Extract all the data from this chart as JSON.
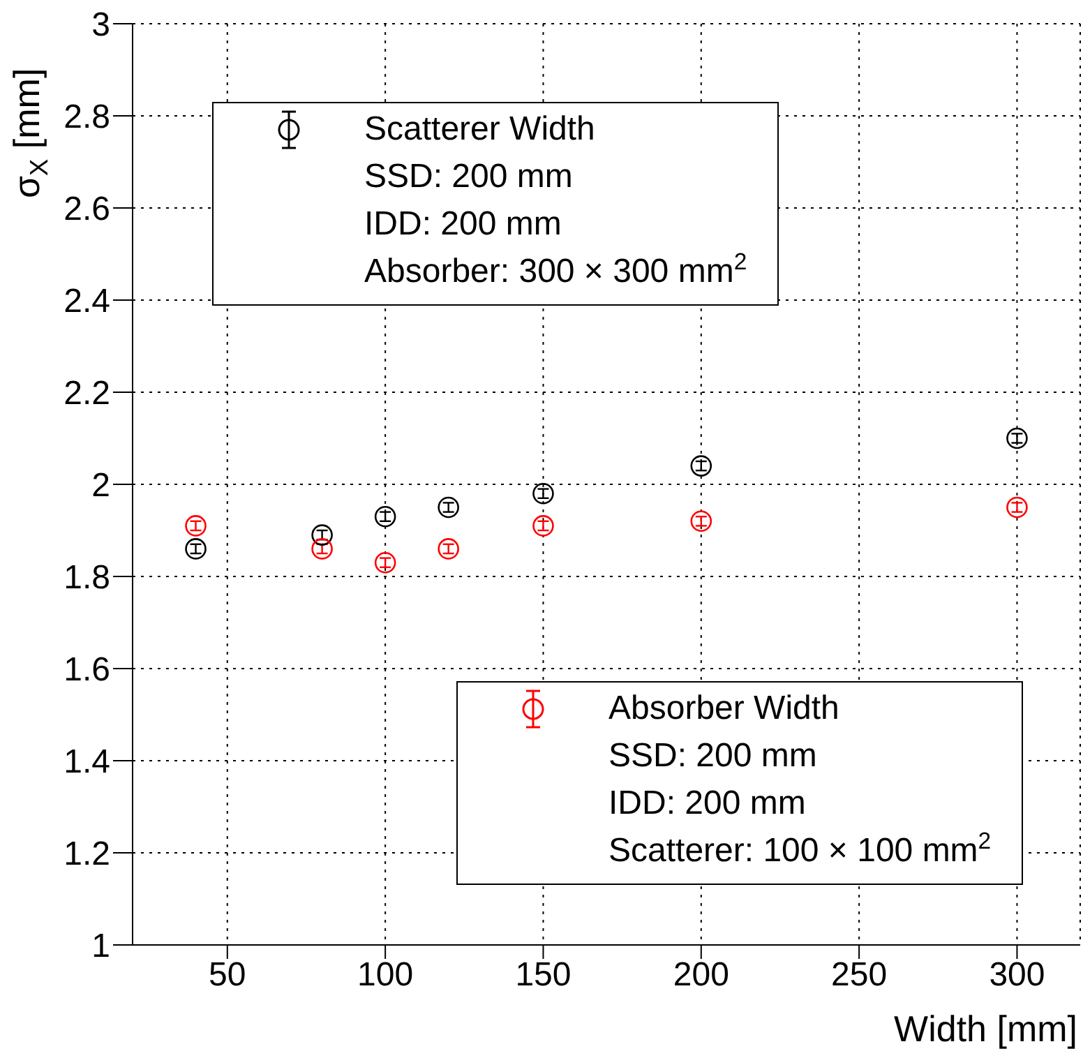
{
  "chart_data": {
    "type": "scatter",
    "xlabel": "Width [mm]",
    "ylabel": "σ$_{X}$ [mm]",
    "x": [
      40,
      80,
      100,
      120,
      150,
      200,
      300
    ],
    "series": [
      {
        "name": "Scatterer Width",
        "color": "#000000",
        "values": [
          1.86,
          1.89,
          1.93,
          1.95,
          1.98,
          2.04,
          2.1
        ],
        "errors": [
          0.01,
          0.01,
          0.01,
          0.01,
          0.01,
          0.01,
          0.01
        ]
      },
      {
        "name": "Absorber Width",
        "color": "#ff0000",
        "values": [
          1.91,
          1.86,
          1.83,
          1.86,
          1.91,
          1.92,
          1.95
        ],
        "errors": [
          0.01,
          0.01,
          0.01,
          0.01,
          0.01,
          0.01,
          0.01
        ]
      }
    ],
    "annotations": [
      "SSD: 200 mm",
      "IDD: 200 mm",
      "Absorber: 300 × 300 mm$^{2}$",
      "SSD: 200 mm",
      "IDD: 200 mm",
      "Scatterer: 100 × 100 mm$^{2}$"
    ],
    "xlim": [
      20,
      320
    ],
    "xticks": [
      50,
      100,
      150,
      200,
      250,
      300
    ],
    "ylim": [
      1,
      3
    ],
    "yticks": [
      1,
      1.2,
      1.4,
      1.6,
      1.8,
      2,
      2.2,
      2.4,
      2.6,
      2.8,
      3
    ],
    "grid": true,
    "legend": "top left",
    "marker": "circle"
  }
}
